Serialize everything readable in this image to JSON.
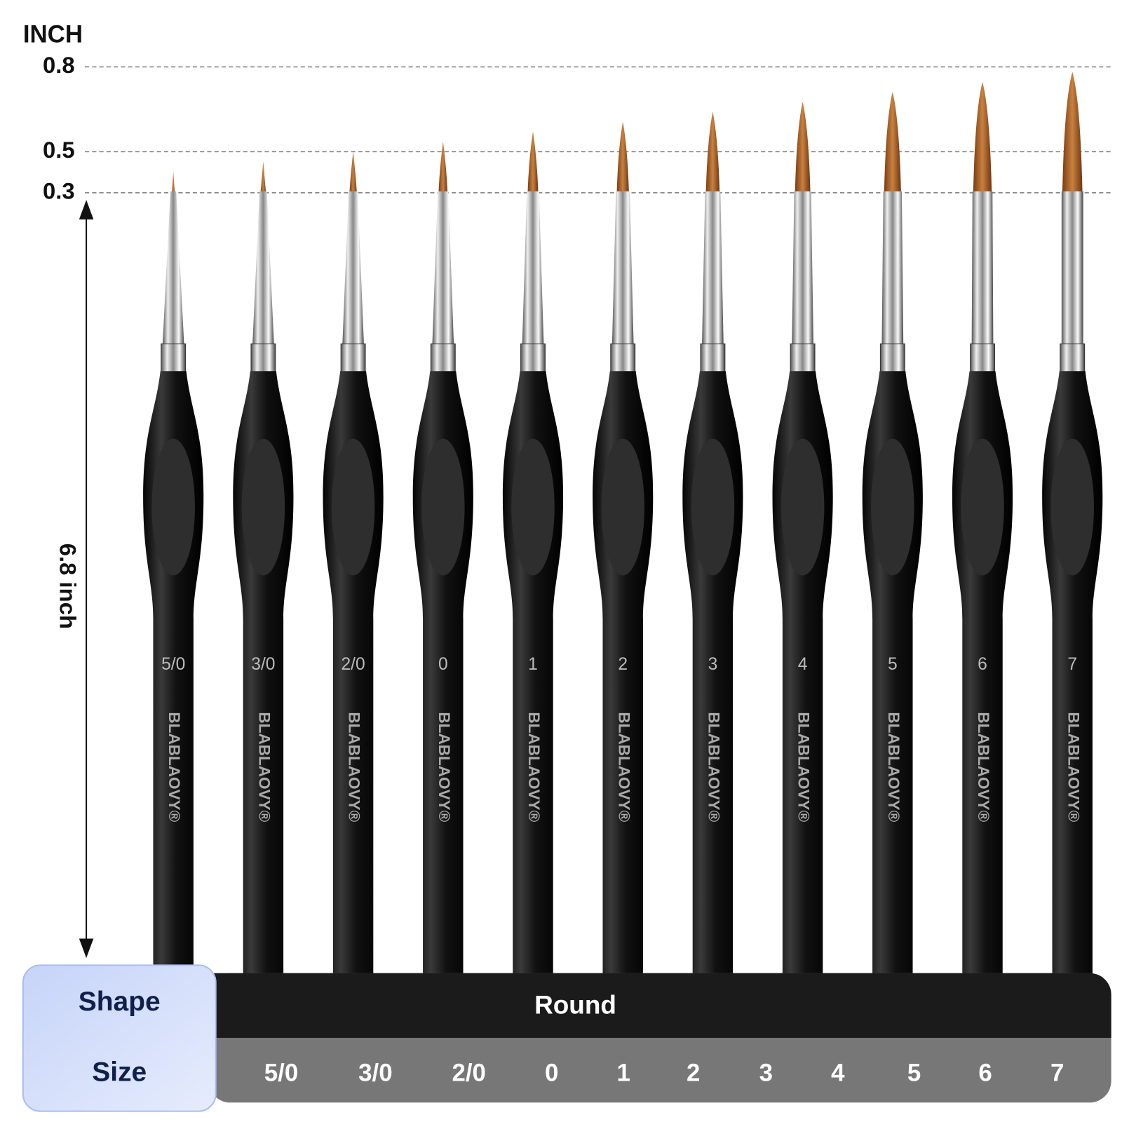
{
  "scale": {
    "unit": "INCH",
    "ticks": [
      "0.8",
      "0.5",
      "0.3"
    ]
  },
  "length": "6.8 inch",
  "brushes": [
    {
      "number": "5/0",
      "brand": "BLABLAOVY®"
    },
    {
      "number": "3/0",
      "brand": "BLABLAOVY®"
    },
    {
      "number": "2/0",
      "brand": "BLABLAOVY®"
    },
    {
      "number": "0",
      "brand": "BLABLAOVY®"
    },
    {
      "number": "1",
      "brand": "BLABLAOVY®"
    },
    {
      "number": "2",
      "brand": "BLABLAOVY®"
    },
    {
      "number": "3",
      "brand": "BLABLAOVY®"
    },
    {
      "number": "4",
      "brand": "BLABLAOVY®"
    },
    {
      "number": "5",
      "brand": "BLABLAOVY®"
    },
    {
      "number": "6",
      "brand": "BLABLAOVY®"
    },
    {
      "number": "7",
      "brand": "BLABLAOVY®"
    }
  ],
  "table": {
    "shape_label": "Shape",
    "shape": "Round",
    "size_label": "Size",
    "sizes": [
      "5/0",
      "3/0",
      "2/0",
      "0",
      "1",
      "2",
      "3",
      "4",
      "5",
      "6",
      "7"
    ]
  }
}
